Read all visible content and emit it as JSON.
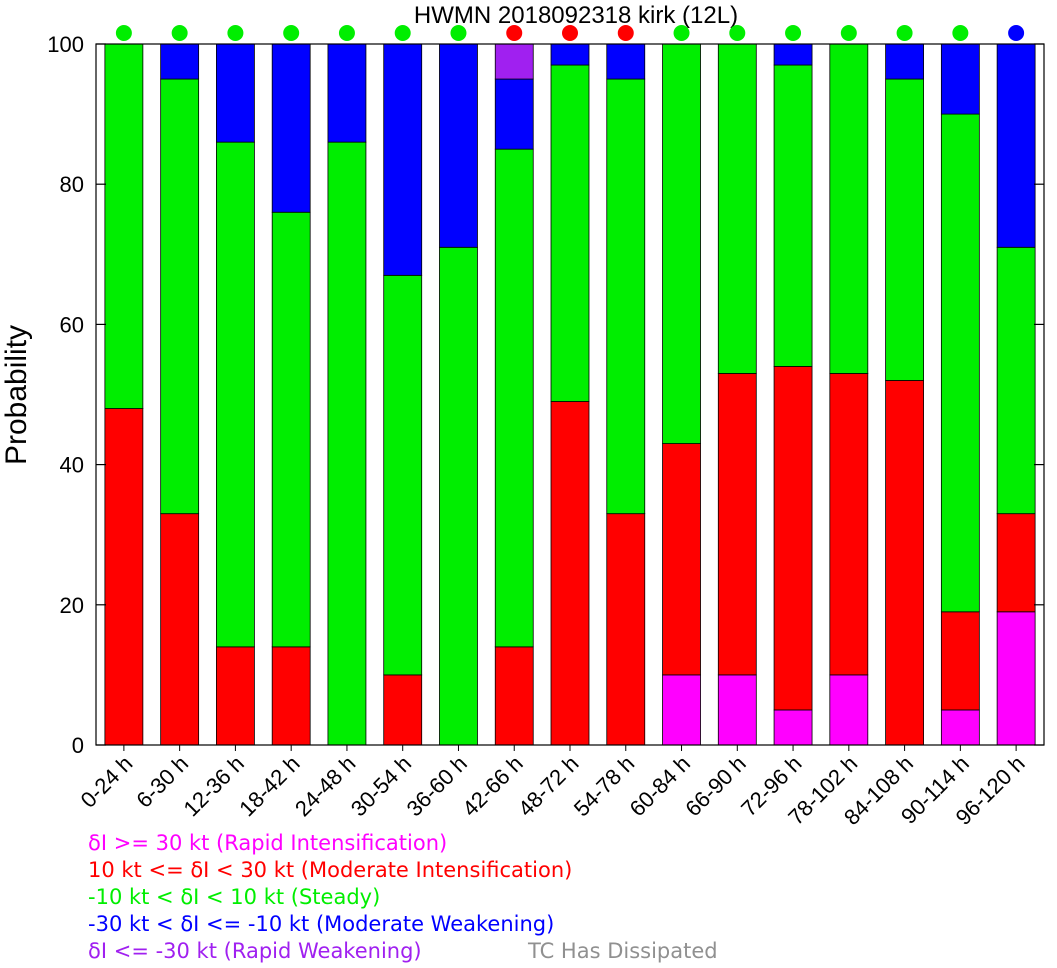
{
  "colors": {
    "rapid_intensification": "#ff00ff",
    "moderate_intensification": "#ff0000",
    "steady": "#00ee00",
    "moderate_weakening": "#0000ff",
    "rapid_weakening": "#a020f0",
    "dissipated": "#909090"
  },
  "chart_data": {
    "type": "bar",
    "stacked": true,
    "title": "HWMN 2018092318 kirk (12L)",
    "xlabel": "",
    "ylabel": "Probability",
    "ylim": [
      0,
      100
    ],
    "yticks": [
      "0",
      "20",
      "40",
      "60",
      "80",
      "100"
    ],
    "categories": [
      "0-24 h",
      "6-30 h",
      "12-36 h",
      "18-42 h",
      "24-48 h",
      "30-54 h",
      "36-60 h",
      "42-66 h",
      "48-72 h",
      "54-78 h",
      "60-84 h",
      "66-90 h",
      "72-96 h",
      "78-102 h",
      "84-108 h",
      "90-114 h",
      "96-120 h"
    ],
    "series": [
      {
        "key": "rapid_intensification",
        "values": [
          0,
          0,
          0,
          0,
          0,
          0,
          0,
          0,
          0,
          0,
          10,
          10,
          5,
          10,
          0,
          5,
          19
        ]
      },
      {
        "key": "moderate_intensification",
        "values": [
          48,
          33,
          14,
          14,
          0,
          10,
          0,
          14,
          49,
          33,
          33,
          43,
          49,
          43,
          52,
          14,
          14
        ]
      },
      {
        "key": "steady",
        "values": [
          52,
          62,
          72,
          62,
          86,
          57,
          71,
          71,
          48,
          62,
          57,
          47,
          43,
          47,
          43,
          71,
          38
        ]
      },
      {
        "key": "moderate_weakening",
        "values": [
          0,
          5,
          14,
          24,
          14,
          33,
          29,
          10,
          3,
          5,
          0,
          0,
          3,
          0,
          5,
          10,
          29
        ]
      },
      {
        "key": "rapid_weakening",
        "values": [
          0,
          0,
          0,
          0,
          0,
          0,
          0,
          5,
          0,
          0,
          0,
          0,
          0,
          0,
          0,
          0,
          0
        ]
      }
    ],
    "top_markers": [
      "steady",
      "steady",
      "steady",
      "steady",
      "steady",
      "steady",
      "steady",
      "moderate_intensification",
      "moderate_intensification",
      "moderate_intensification",
      "steady",
      "steady",
      "steady",
      "steady",
      "steady",
      "steady",
      "moderate_weakening"
    ],
    "legend": [
      {
        "key": "rapid_intensification",
        "label": "δI >= 30 kt (Rapid Intensification)"
      },
      {
        "key": "moderate_intensification",
        "label": "10 kt <= δI < 30 kt (Moderate Intensification)"
      },
      {
        "key": "steady",
        "label": "-10 kt < δI < 10 kt (Steady)"
      },
      {
        "key": "moderate_weakening",
        "label": "-30 kt < δI <= -10 kt (Moderate Weakening)"
      },
      {
        "key": "rapid_weakening",
        "label": "δI <= -30 kt (Rapid Weakening)"
      },
      {
        "key": "dissipated",
        "label": "TC Has Dissipated"
      }
    ],
    "legend_placement": "bottom-left",
    "grid": false
  }
}
